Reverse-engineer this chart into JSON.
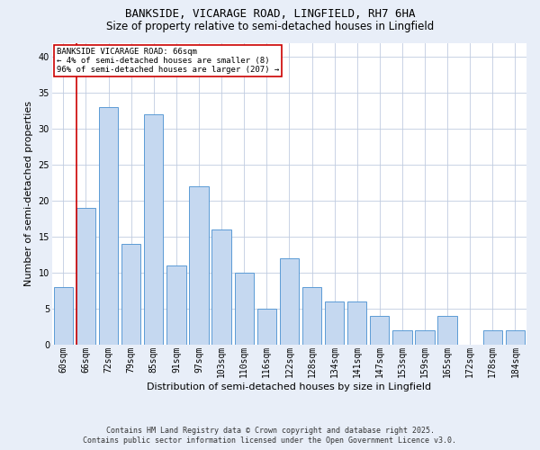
{
  "title1": "BANKSIDE, VICARAGE ROAD, LINGFIELD, RH7 6HA",
  "title2": "Size of property relative to semi-detached houses in Lingfield",
  "xlabel": "Distribution of semi-detached houses by size in Lingfield",
  "ylabel": "Number of semi-detached properties",
  "categories": [
    "60sqm",
    "66sqm",
    "72sqm",
    "79sqm",
    "85sqm",
    "91sqm",
    "97sqm",
    "103sqm",
    "110sqm",
    "116sqm",
    "122sqm",
    "128sqm",
    "134sqm",
    "141sqm",
    "147sqm",
    "153sqm",
    "159sqm",
    "165sqm",
    "172sqm",
    "178sqm",
    "184sqm"
  ],
  "values": [
    8,
    19,
    33,
    14,
    32,
    11,
    22,
    16,
    10,
    5,
    12,
    8,
    6,
    6,
    4,
    2,
    2,
    4,
    0,
    2,
    2
  ],
  "bar_color": "#c5d8f0",
  "bar_edge_color": "#5b9bd5",
  "highlight_index": 1,
  "red_line_color": "#cc0000",
  "ylim_max": 42,
  "yticks": [
    0,
    5,
    10,
    15,
    20,
    25,
    30,
    35,
    40
  ],
  "annotation_title": "BANKSIDE VICARAGE ROAD: 66sqm",
  "annotation_line1": "← 4% of semi-detached houses are smaller (8)",
  "annotation_line2": "96% of semi-detached houses are larger (207) →",
  "footnote1": "Contains HM Land Registry data © Crown copyright and database right 2025.",
  "footnote2": "Contains public sector information licensed under the Open Government Licence v3.0.",
  "bg_color": "#e8eef8",
  "plot_bg_color": "#ffffff",
  "grid_color": "#c0cce0",
  "title1_fontsize": 9,
  "title2_fontsize": 8.5,
  "axis_label_fontsize": 8,
  "tick_fontsize": 7,
  "annotation_fontsize": 6.5,
  "footnote_fontsize": 6
}
